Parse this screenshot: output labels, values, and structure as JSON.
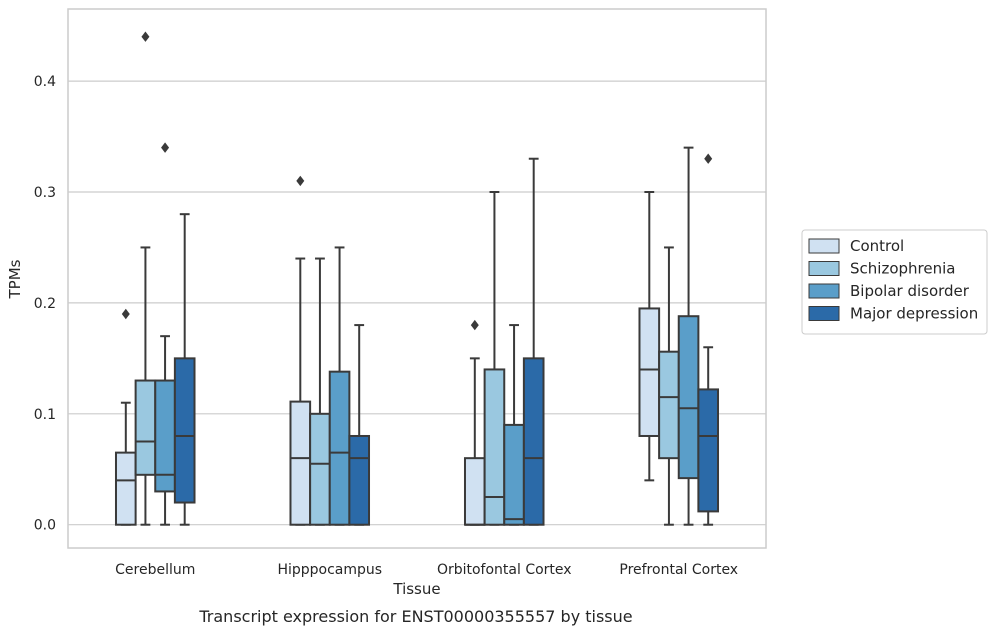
{
  "caption": "Transcript expression for ENST00000355557 by tissue",
  "chart_data": {
    "type": "box",
    "xlabel": "Tissue",
    "ylabel": "TPMs",
    "ylim": [
      -0.021,
      0.465
    ],
    "yticks": [
      0.0,
      0.1,
      0.2,
      0.3,
      0.4
    ],
    "ytick_labels": [
      "0.0",
      "0.1",
      "0.2",
      "0.3",
      "0.4"
    ],
    "grid": "horizontal",
    "legend_position": "right",
    "categories": [
      "Cerebellum",
      "Hipppocampus",
      "Orbitofontal Cortex",
      "Prefrontal Cortex"
    ],
    "series": [
      {
        "name": "Control",
        "color": "#d0e1f2",
        "boxes": [
          {
            "whislo": 0.0,
            "q1": 0.0,
            "med": 0.04,
            "q3": 0.065,
            "whishi": 0.11,
            "fliers": [
              0.19
            ]
          },
          {
            "whislo": 0.0,
            "q1": 0.0,
            "med": 0.06,
            "q3": 0.111,
            "whishi": 0.24,
            "fliers": [
              0.31
            ]
          },
          {
            "whislo": 0.0,
            "q1": 0.0,
            "med": 0.0,
            "q3": 0.06,
            "whishi": 0.15,
            "fliers": [
              0.18
            ]
          },
          {
            "whislo": 0.04,
            "q1": 0.08,
            "med": 0.14,
            "q3": 0.195,
            "whishi": 0.3,
            "fliers": []
          }
        ]
      },
      {
        "name": "Schizophrenia",
        "color": "#9ac8e0",
        "boxes": [
          {
            "whislo": 0.0,
            "q1": 0.045,
            "med": 0.075,
            "q3": 0.13,
            "whishi": 0.25,
            "fliers": [
              0.44
            ]
          },
          {
            "whislo": 0.0,
            "q1": 0.0,
            "med": 0.055,
            "q3": 0.1,
            "whishi": 0.24,
            "fliers": []
          },
          {
            "whislo": 0.0,
            "q1": 0.0,
            "med": 0.025,
            "q3": 0.14,
            "whishi": 0.3,
            "fliers": []
          },
          {
            "whislo": 0.0,
            "q1": 0.06,
            "med": 0.115,
            "q3": 0.156,
            "whishi": 0.25,
            "fliers": []
          }
        ]
      },
      {
        "name": "Bipolar disorder",
        "color": "#5a9ec9",
        "boxes": [
          {
            "whislo": 0.0,
            "q1": 0.03,
            "med": 0.045,
            "q3": 0.13,
            "whishi": 0.17,
            "fliers": [
              0.34
            ]
          },
          {
            "whislo": 0.0,
            "q1": 0.0,
            "med": 0.065,
            "q3": 0.138,
            "whishi": 0.25,
            "fliers": []
          },
          {
            "whislo": 0.0,
            "q1": 0.0,
            "med": 0.005,
            "q3": 0.09,
            "whishi": 0.18,
            "fliers": []
          },
          {
            "whislo": 0.0,
            "q1": 0.042,
            "med": 0.105,
            "q3": 0.188,
            "whishi": 0.34,
            "fliers": []
          }
        ]
      },
      {
        "name": "Major depression",
        "color": "#2b6aa8",
        "boxes": [
          {
            "whislo": 0.0,
            "q1": 0.02,
            "med": 0.08,
            "q3": 0.15,
            "whishi": 0.28,
            "fliers": []
          },
          {
            "whislo": 0.0,
            "q1": 0.0,
            "med": 0.06,
            "q3": 0.08,
            "whishi": 0.18,
            "fliers": []
          },
          {
            "whislo": 0.0,
            "q1": 0.0,
            "med": 0.06,
            "q3": 0.15,
            "whishi": 0.33,
            "fliers": []
          },
          {
            "whislo": 0.0,
            "q1": 0.012,
            "med": 0.08,
            "q3": 0.122,
            "whishi": 0.16,
            "fliers": [
              0.33
            ]
          }
        ]
      }
    ]
  }
}
